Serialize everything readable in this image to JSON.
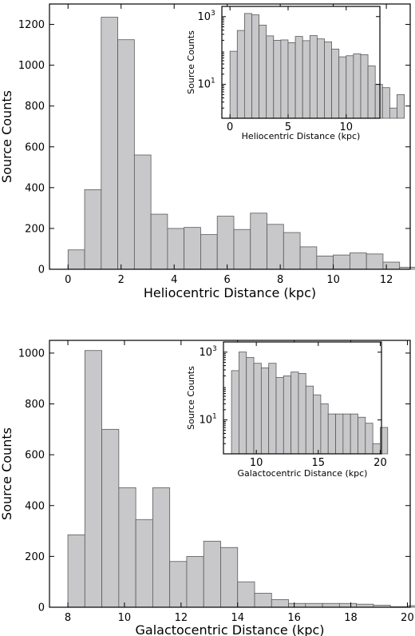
{
  "chart_data": [
    {
      "type": "bar",
      "name": "heliocentric-main",
      "xlabel": "Heliocentric Distance (kpc)",
      "ylabel": "Source Counts",
      "xlim": [
        -0.7,
        12.9
      ],
      "ylim": [
        0,
        1300
      ],
      "bin_width": 0.625,
      "bin_start": 0,
      "values": [
        95,
        390,
        1235,
        1125,
        560,
        270,
        200,
        205,
        170,
        260,
        195,
        275,
        220,
        180,
        110,
        65,
        70,
        80,
        75,
        35,
        10,
        8,
        0,
        0
      ],
      "xticks": [
        0,
        2,
        4,
        6,
        8,
        10,
        12
      ],
      "yticks": [
        0,
        200,
        400,
        600,
        800,
        1000,
        1200
      ],
      "inset": {
        "xlabel": "Heliocentric Distance (kpc)",
        "ylabel": "Source Counts",
        "scale": "log",
        "xlim": [
          -0.7,
          12.9
        ],
        "ylim": [
          1,
          2000
        ],
        "xticks": [
          0,
          5,
          10
        ],
        "yticks": [
          {
            "value": 10,
            "label": "10",
            "exp": "1"
          },
          {
            "value": 1000,
            "label": "10",
            "exp": "3"
          }
        ],
        "values": [
          95,
          390,
          1235,
          1125,
          560,
          270,
          200,
          205,
          170,
          260,
          195,
          275,
          220,
          180,
          110,
          65,
          70,
          80,
          75,
          35,
          10,
          8,
          2,
          5
        ]
      }
    },
    {
      "type": "bar",
      "name": "galactocentric-main",
      "xlabel": "Galactocentric Distance (kpc)",
      "ylabel": "Source Counts",
      "xlim": [
        7.35,
        20.1
      ],
      "ylim": [
        0,
        1050
      ],
      "bin_width": 0.6,
      "bin_start": 8.0,
      "values": [
        285,
        1010,
        700,
        470,
        345,
        470,
        180,
        200,
        260,
        235,
        100,
        55,
        30,
        15,
        15,
        15,
        15,
        12,
        8,
        2,
        6
      ],
      "xticks": [
        8,
        10,
        12,
        14,
        16,
        18,
        20
      ],
      "yticks": [
        0,
        200,
        400,
        600,
        800,
        1000
      ],
      "inset": {
        "xlabel": "Galactocentric Distance (kpc)",
        "ylabel": "Source Counts",
        "scale": "log",
        "xlim": [
          7.35,
          20.1
        ],
        "ylim": [
          1,
          2000
        ],
        "xticks": [
          10,
          15,
          20
        ],
        "yticks": [
          {
            "value": 10,
            "label": "10",
            "exp": "1"
          },
          {
            "value": 1000,
            "label": "10",
            "exp": "3"
          }
        ],
        "values": [
          285,
          1010,
          700,
          470,
          345,
          470,
          180,
          200,
          260,
          235,
          100,
          55,
          30,
          15,
          15,
          15,
          15,
          12,
          8,
          2,
          6
        ]
      }
    }
  ]
}
